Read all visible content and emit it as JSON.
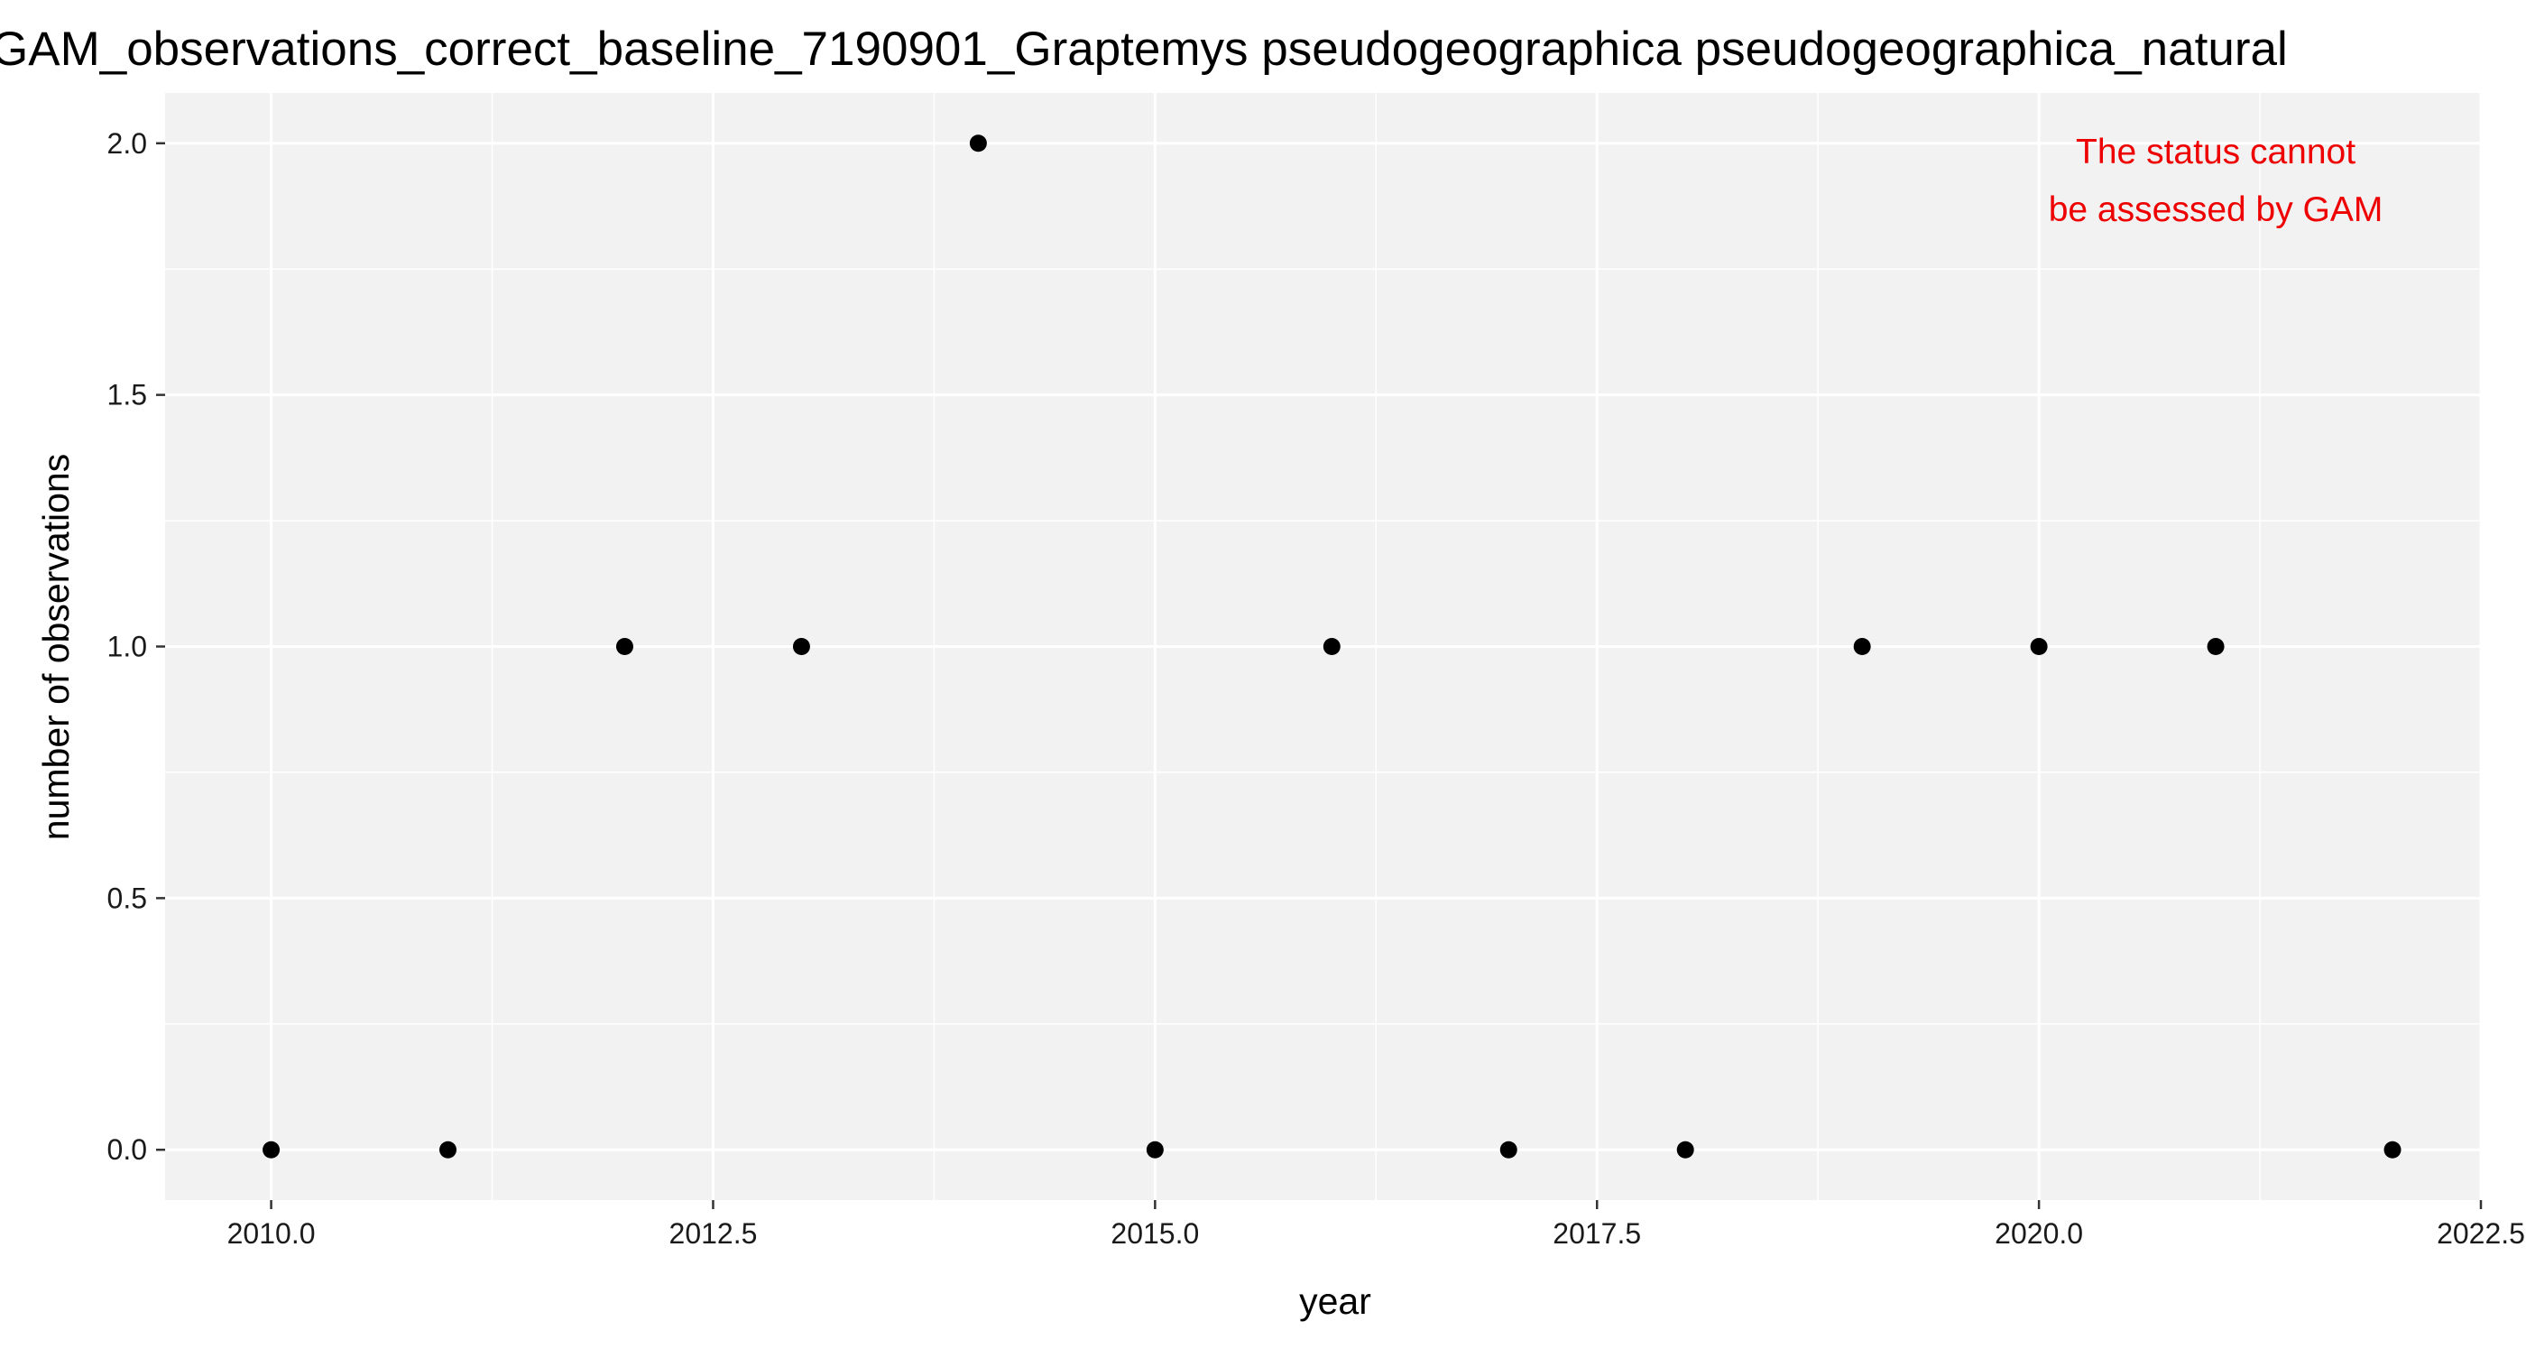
{
  "chart_data": {
    "type": "scatter",
    "title": "GAM_observations_correct_baseline_7190901_Graptemys pseudogeographica pseudogeographica_natural",
    "xlabel": "year",
    "ylabel": "number of observations",
    "xlim": [
      2009.4,
      2022.5
    ],
    "ylim": [
      -0.1,
      2.1
    ],
    "x_ticks": [
      2010.0,
      2012.5,
      2015.0,
      2017.5,
      2020.0,
      2022.5
    ],
    "x_tick_labels": [
      "2010.0",
      "2012.5",
      "2015.0",
      "2017.5",
      "2020.0",
      "2022.5"
    ],
    "y_ticks": [
      0.0,
      0.5,
      1.0,
      1.5,
      2.0
    ],
    "y_tick_labels": [
      "0.0",
      "0.5",
      "1.0",
      "1.5",
      "2.0"
    ],
    "grid": true,
    "panel_color": "#f2f2f2",
    "point_color": "#000000",
    "x": [
      2010,
      2011,
      2012,
      2013,
      2014,
      2015,
      2016,
      2017,
      2018,
      2019,
      2020,
      2021,
      2022
    ],
    "y": [
      0,
      0,
      1,
      1,
      2,
      0,
      1,
      0,
      0,
      1,
      1,
      1,
      0
    ],
    "annotation": {
      "lines": [
        "The status cannot",
        "be assessed by GAM"
      ],
      "color": "#ee0000",
      "placement": "top-right"
    }
  }
}
